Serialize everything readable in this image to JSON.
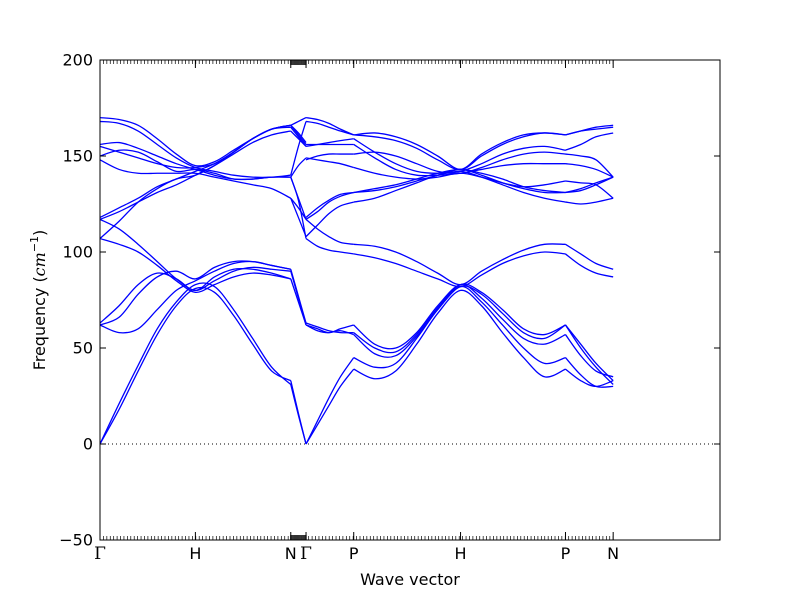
{
  "chart_data": {
    "type": "line",
    "xlabel": "Wave vector",
    "ylabel_prefix": "Frequency (",
    "ylabel_unit": "cm",
    "ylabel_exp": "−1",
    "ylabel_suffix": ")",
    "ylim": [
      -50,
      200
    ],
    "yticks": [
      "−50",
      "0",
      "50",
      "100",
      "150",
      "200"
    ],
    "ytick_values": [
      -50,
      0,
      50,
      100,
      150,
      200
    ],
    "xlim": [
      0,
      3.25
    ],
    "xticks": [
      {
        "label": "Γ",
        "x": 0
      },
      {
        "label": "H",
        "x": 0.5
      },
      {
        "label": "N",
        "x": 1.0
      },
      {
        "label": "Γ",
        "x": 1.08
      },
      {
        "label": "P",
        "x": 1.33
      },
      {
        "label": "H",
        "x": 1.89
      },
      {
        "label": "P",
        "x": 2.44
      },
      {
        "label": "N",
        "x": 2.69
      }
    ],
    "zero_line": true,
    "line_color": "#0000ff",
    "segments": [
      {
        "name": "Γ-H-N",
        "x": [
          0,
          0.1,
          0.2,
          0.3,
          0.4,
          0.5,
          0.6,
          0.7,
          0.8,
          0.9,
          1.0
        ],
        "series": [
          [
            0,
            18,
            38,
            57,
            72,
            81,
            79,
            67,
            52,
            38,
            33
          ],
          [
            0,
            21,
            41,
            60,
            74,
            83,
            82,
            70,
            55,
            40,
            31
          ],
          [
            62,
            58,
            60,
            70,
            80,
            85,
            90,
            94,
            95,
            93,
            91
          ],
          [
            63,
            72,
            83,
            89,
            86,
            80,
            87,
            91,
            91,
            89,
            86
          ],
          [
            62,
            66,
            78,
            87,
            90,
            86,
            92,
            95,
            95,
            93,
            91
          ],
          [
            107,
            104,
            100,
            93,
            85,
            79,
            83,
            87,
            89,
            88,
            86
          ],
          [
            117,
            112,
            104,
            95,
            86,
            80,
            85,
            90,
            92,
            91,
            90
          ],
          [
            117,
            121,
            126,
            131,
            135,
            140,
            145,
            152,
            159,
            164,
            165
          ],
          [
            107,
            116,
            126,
            133,
            138,
            140,
            145,
            151,
            157,
            161,
            163
          ],
          [
            118,
            123,
            128,
            134,
            138,
            142,
            146,
            152,
            159,
            164,
            166
          ],
          [
            148,
            143,
            141,
            141,
            141,
            141,
            139,
            137,
            135,
            133,
            128
          ],
          [
            150,
            153,
            152,
            147,
            142,
            143,
            141,
            138,
            138,
            139,
            139
          ],
          [
            156,
            157,
            154,
            150,
            146,
            143,
            140,
            138,
            138,
            139,
            139
          ],
          [
            155,
            152,
            149,
            146,
            144,
            144,
            146,
            152,
            159,
            164,
            166
          ],
          [
            168,
            167,
            163,
            156,
            149,
            144,
            142,
            140,
            139,
            139,
            140
          ],
          [
            170,
            169,
            166,
            159,
            151,
            145,
            147,
            153,
            159,
            164,
            166
          ]
        ]
      },
      {
        "name": "N-Γ",
        "x": [
          1.0,
          1.04,
          1.08
        ],
        "series": [
          [
            33,
            16,
            0
          ],
          [
            31,
            15,
            0
          ],
          [
            91,
            77,
            63
          ],
          [
            86,
            74,
            62
          ],
          [
            90,
            76,
            62
          ],
          [
            128,
            118,
            108
          ],
          [
            139,
            128,
            117
          ],
          [
            165,
            160,
            155
          ],
          [
            163,
            159,
            155
          ],
          [
            166,
            162,
            157
          ],
          [
            128,
            123,
            117
          ],
          [
            139,
            127,
            107
          ],
          [
            139,
            145,
            149
          ],
          [
            166,
            161,
            156
          ],
          [
            140,
            155,
            168
          ],
          [
            166,
            168,
            170
          ]
        ]
      },
      {
        "name": "Γ-P",
        "x": [
          1.08,
          1.14,
          1.2,
          1.26,
          1.33
        ],
        "series": [
          [
            0,
            10,
            20,
            30,
            39
          ],
          [
            0,
            12,
            24,
            35,
            45
          ],
          [
            62,
            60,
            58,
            60,
            62
          ],
          [
            62,
            59,
            58,
            59,
            57
          ],
          [
            63,
            61,
            59,
            58,
            58
          ],
          [
            107,
            103,
            101,
            100,
            99
          ],
          [
            117,
            112,
            108,
            105,
            104
          ],
          [
            108,
            114,
            120,
            124,
            126
          ],
          [
            118,
            123,
            127,
            130,
            131
          ],
          [
            117,
            121,
            126,
            129,
            131
          ],
          [
            149,
            148,
            147,
            146,
            144
          ],
          [
            148,
            150,
            151,
            151,
            151
          ],
          [
            156,
            156,
            156,
            156,
            156
          ],
          [
            155,
            156,
            157,
            158,
            159
          ],
          [
            168,
            167,
            165,
            163,
            161
          ],
          [
            170,
            169,
            167,
            164,
            161
          ]
        ]
      },
      {
        "name": "P-H-P",
        "x": [
          1.33,
          1.44,
          1.55,
          1.66,
          1.77,
          1.89,
          2.0,
          2.11,
          2.22,
          2.33,
          2.44
        ],
        "series": [
          [
            39,
            34,
            38,
            52,
            68,
            80,
            72,
            58,
            45,
            35,
            39
          ],
          [
            45,
            40,
            42,
            55,
            70,
            82,
            74,
            62,
            50,
            42,
            45
          ],
          [
            62,
            52,
            50,
            58,
            72,
            83,
            76,
            65,
            55,
            52,
            57
          ],
          [
            57,
            47,
            46,
            56,
            70,
            82,
            78,
            68,
            58,
            55,
            62
          ],
          [
            58,
            50,
            48,
            57,
            71,
            83,
            79,
            70,
            60,
            57,
            62
          ],
          [
            99,
            97,
            94,
            90,
            86,
            82,
            88,
            94,
            98,
            100,
            99
          ],
          [
            104,
            103,
            100,
            95,
            89,
            83,
            90,
            96,
            101,
            104,
            104
          ],
          [
            126,
            128,
            132,
            136,
            140,
            142,
            139,
            135,
            131,
            128,
            126
          ],
          [
            131,
            132,
            134,
            137,
            140,
            143,
            140,
            136,
            133,
            131,
            131
          ],
          [
            131,
            133,
            135,
            138,
            141,
            143,
            141,
            138,
            134,
            132,
            131
          ],
          [
            144,
            141,
            139,
            138,
            139,
            141,
            139,
            136,
            134,
            135,
            137
          ],
          [
            151,
            152,
            150,
            146,
            142,
            141,
            144,
            148,
            151,
            152,
            151
          ],
          [
            156,
            149,
            143,
            140,
            140,
            141,
            143,
            145,
            146,
            146,
            146
          ],
          [
            159,
            152,
            146,
            142,
            141,
            142,
            146,
            151,
            154,
            155,
            153
          ],
          [
            161,
            162,
            160,
            156,
            150,
            143,
            150,
            156,
            160,
            162,
            161
          ],
          [
            161,
            160,
            158,
            154,
            148,
            143,
            151,
            157,
            161,
            162,
            161
          ]
        ]
      },
      {
        "name": "P-N",
        "x": [
          2.44,
          2.52,
          2.6,
          2.69
        ],
        "series": [
          [
            39,
            33,
            30,
            33
          ],
          [
            45,
            36,
            30,
            30
          ],
          [
            57,
            46,
            38,
            35
          ],
          [
            62,
            50,
            40,
            31
          ],
          [
            62,
            52,
            42,
            33
          ],
          [
            99,
            93,
            89,
            87
          ],
          [
            104,
            99,
            94,
            91
          ],
          [
            126,
            125,
            126,
            128
          ],
          [
            131,
            133,
            136,
            139
          ],
          [
            131,
            132,
            135,
            139
          ],
          [
            137,
            136,
            135,
            128
          ],
          [
            151,
            150,
            148,
            139
          ],
          [
            146,
            145,
            143,
            139
          ],
          [
            153,
            156,
            160,
            162
          ],
          [
            161,
            163,
            165,
            166
          ],
          [
            161,
            163,
            164,
            165
          ]
        ]
      }
    ]
  }
}
